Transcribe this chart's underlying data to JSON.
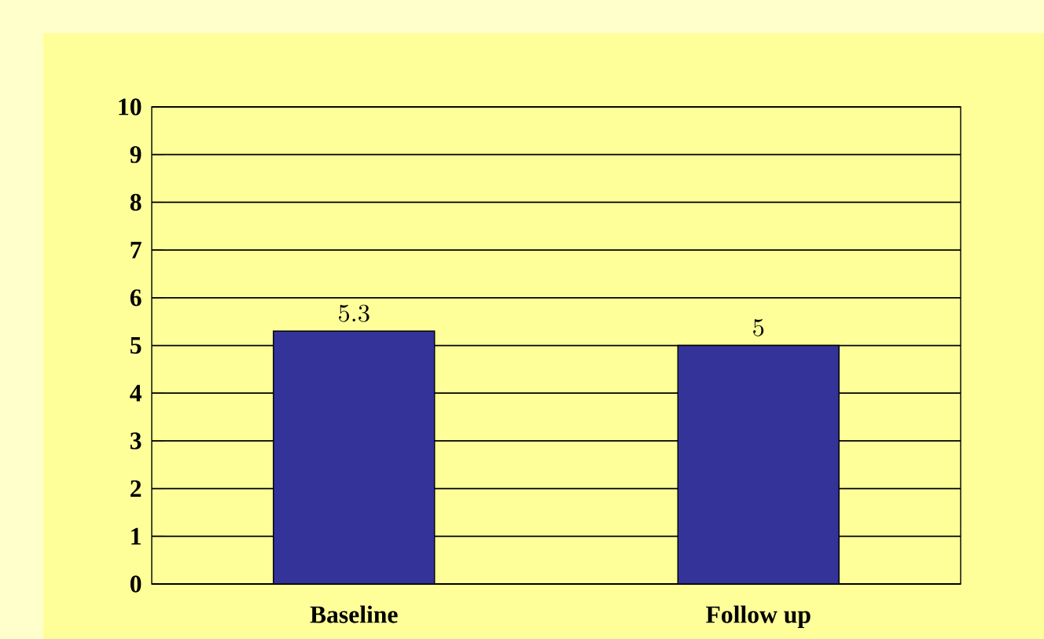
{
  "chart_data": {
    "type": "bar",
    "categories": [
      "Baseline",
      "Follow up"
    ],
    "values": [
      5.3,
      5
    ],
    "color": "#333399",
    "ylim": [
      0,
      10
    ],
    "yticks": [
      0,
      1,
      2,
      3,
      4,
      5,
      6,
      7,
      8,
      9,
      10
    ],
    "grid": "y",
    "data_labels": true
  }
}
